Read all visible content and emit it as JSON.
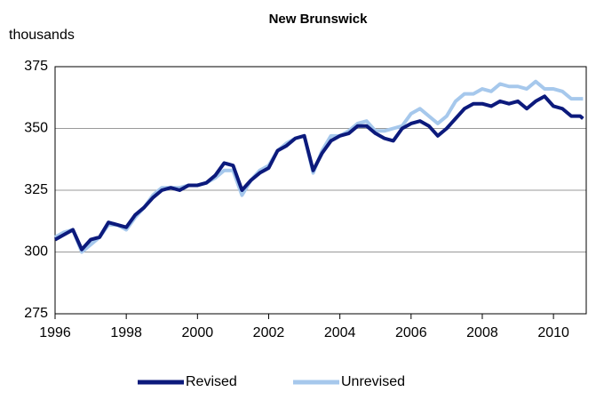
{
  "chart_data": {
    "type": "line",
    "title": "New Brunswick",
    "y_label": "thousands",
    "x": [
      1996,
      1996.25,
      1996.5,
      1996.75,
      1997,
      1997.25,
      1997.5,
      1997.75,
      1998,
      1998.25,
      1998.5,
      1998.75,
      1999,
      1999.25,
      1999.5,
      1999.75,
      2000,
      2000.25,
      2000.5,
      2000.75,
      2001,
      2001.25,
      2001.5,
      2001.75,
      2002,
      2002.25,
      2002.5,
      2002.75,
      2003,
      2003.25,
      2003.5,
      2003.75,
      2004,
      2004.25,
      2004.5,
      2004.75,
      2005,
      2005.25,
      2005.5,
      2005.75,
      2006,
      2006.25,
      2006.5,
      2006.75,
      2007,
      2007.25,
      2007.5,
      2007.75,
      2008,
      2008.25,
      2008.5,
      2008.75,
      2009,
      2009.25,
      2009.5,
      2009.75,
      2010,
      2010.25,
      2010.5,
      2010.75,
      2010.83
    ],
    "series": [
      {
        "name": "Unrevised",
        "color": "#a6c8ec",
        "values": [
          306,
          308,
          309,
          300,
          303,
          306,
          311,
          311,
          309,
          314,
          318,
          323,
          326,
          326,
          326,
          327,
          327,
          328,
          330,
          333,
          333,
          323,
          329,
          333,
          335,
          341,
          344,
          346,
          347,
          332,
          341,
          347,
          347,
          349,
          352,
          353,
          349,
          349,
          350,
          351,
          356,
          358,
          355,
          352,
          355,
          361,
          364,
          364,
          366,
          365,
          368,
          367,
          367,
          366,
          369,
          366,
          366,
          365,
          362,
          362,
          362
        ]
      },
      {
        "name": "Revised",
        "color": "#0c1a7c",
        "values": [
          305,
          307,
          309,
          301,
          305,
          306,
          312,
          311,
          310,
          315,
          318,
          322,
          325,
          326,
          325,
          327,
          327,
          328,
          331,
          336,
          335,
          325,
          329,
          332,
          334,
          341,
          343,
          346,
          347,
          333,
          340,
          345,
          347,
          348,
          351,
          351,
          348,
          346,
          345,
          350,
          352,
          353,
          351,
          347,
          350,
          354,
          358,
          360,
          360,
          359,
          361,
          360,
          361,
          358,
          361,
          363,
          359,
          358,
          355,
          355,
          354
        ]
      }
    ],
    "xlim": [
      1996,
      2010.92
    ],
    "xticks": [
      1996,
      1998,
      2000,
      2002,
      2004,
      2006,
      2008,
      2010
    ],
    "ylim": [
      275,
      375
    ],
    "yticks": [
      275,
      300,
      325,
      350,
      375
    ],
    "grid": true
  }
}
